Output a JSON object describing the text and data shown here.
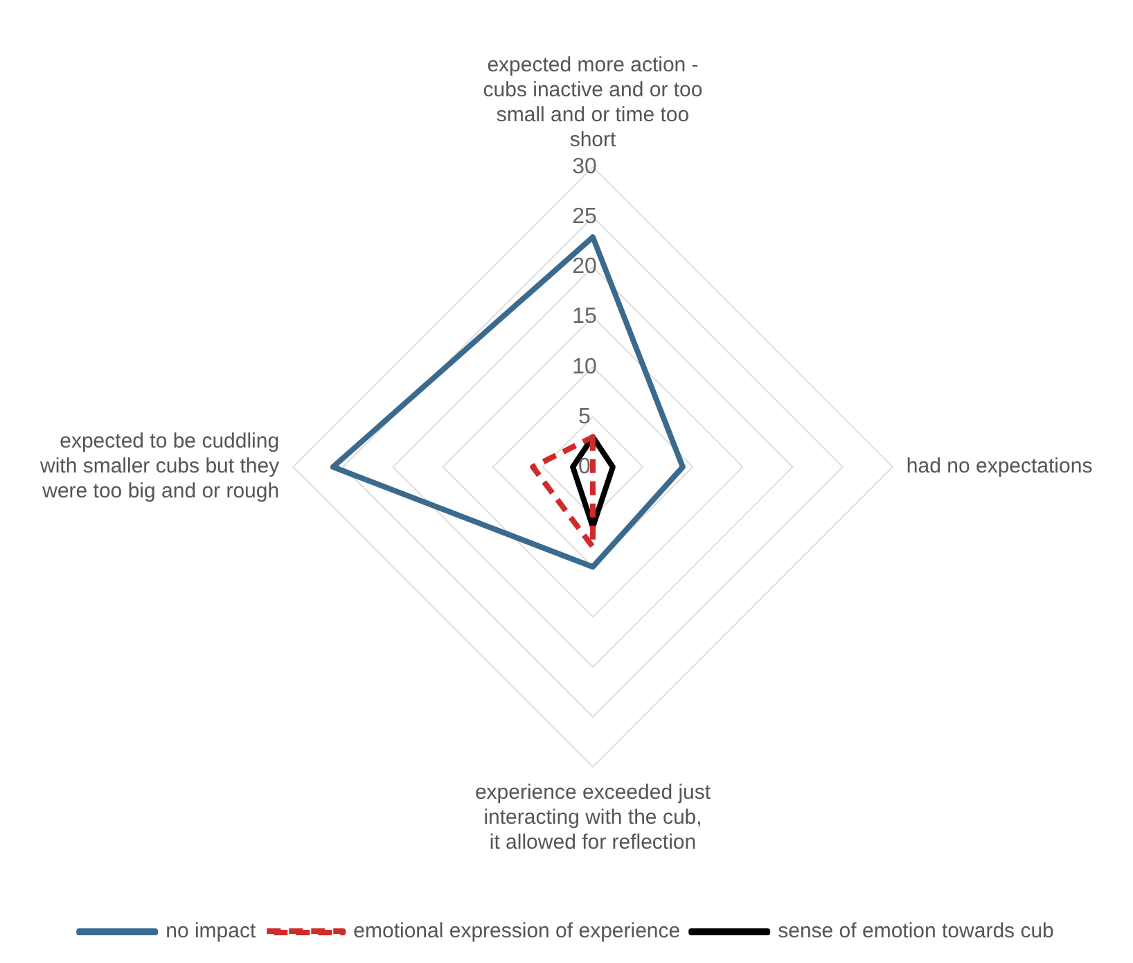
{
  "chart_data": {
    "type": "radar",
    "categories": [
      "expected more action - cubs inactive and or too small and or time too short",
      "had no expectations",
      "experience exceeded just interacting with the cub, it allowed for reflection",
      "expected to be cuddling with smaller cubs but they were too big and or rough"
    ],
    "series": [
      {
        "name": "no impact",
        "color": "#3b6a8f",
        "values": [
          23,
          9,
          10,
          26
        ]
      },
      {
        "name": "emotional expression of experience",
        "color": "#d12a2a",
        "values": [
          3,
          0,
          8,
          6
        ],
        "line_style": "dashed"
      },
      {
        "name": "sense of emotion towards cub",
        "color": "#000000",
        "values": [
          3,
          2,
          6,
          2
        ]
      }
    ],
    "ylim": [
      0,
      30
    ],
    "yticks": [
      0,
      5,
      10,
      15,
      20,
      25,
      30
    ],
    "grid": true,
    "legend": "bottom",
    "marker": "none"
  }
}
